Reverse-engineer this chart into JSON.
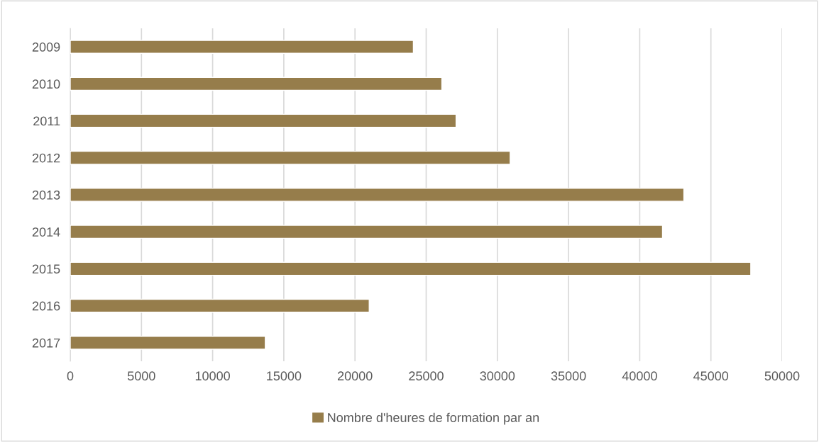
{
  "chart_data": {
    "type": "bar",
    "orientation": "horizontal",
    "categories": [
      "2009",
      "2010",
      "2011",
      "2012",
      "2013",
      "2014",
      "2015",
      "2016",
      "2017"
    ],
    "series": [
      {
        "name": "Nombre d'heures de formation par an",
        "color": "#967d4b",
        "values": [
          24100,
          26100,
          27100,
          30900,
          43100,
          41600,
          47800,
          21000,
          13700
        ]
      }
    ],
    "xlim": [
      0,
      50000
    ],
    "xticks": [
      0,
      5000,
      10000,
      15000,
      20000,
      25000,
      30000,
      35000,
      40000,
      45000,
      50000
    ],
    "grid": "x",
    "legend": "bottom"
  }
}
